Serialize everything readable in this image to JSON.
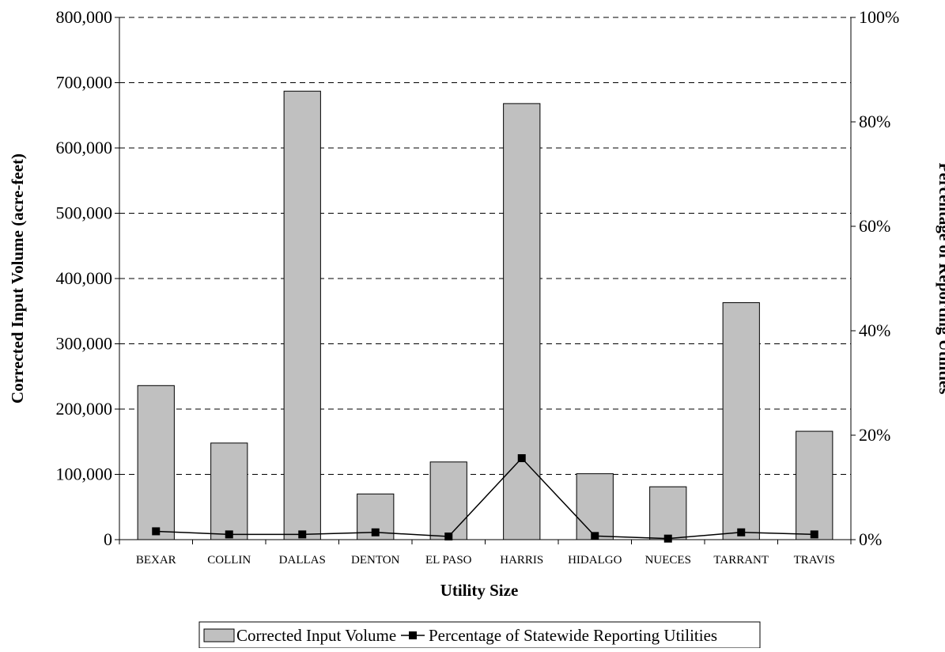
{
  "chart_data": {
    "type": "bar",
    "xlabel": "Utility Size",
    "ylabel": "Corrected Input Volume (acre-feet)",
    "y2label": "Percentage of Reporting Utilities",
    "categories": [
      "BEXAR",
      "COLLIN",
      "DALLAS",
      "DENTON",
      "EL PASO",
      "HARRIS",
      "HIDALGO",
      "NUECES",
      "TARRANT",
      "TRAVIS"
    ],
    "ylim": [
      0,
      800000
    ],
    "y_ticks": [
      0,
      100000,
      200000,
      300000,
      400000,
      500000,
      600000,
      700000,
      800000
    ],
    "y_tick_labels": [
      "0",
      "100,000",
      "200,000",
      "300,000",
      "400,000",
      "500,000",
      "600,000",
      "700,000",
      "800,000"
    ],
    "y2lim": [
      0,
      100
    ],
    "y2_ticks": [
      0,
      20,
      40,
      60,
      80,
      100
    ],
    "y2_tick_labels": [
      "0%",
      "20%",
      "40%",
      "60%",
      "80%",
      "100%"
    ],
    "grid": true,
    "legend_position": "bottom",
    "series": [
      {
        "name": "Corrected Input Volume",
        "type": "bar",
        "axis": "left",
        "color": "#c0c0c0",
        "values": [
          236000,
          148000,
          687000,
          70000,
          119000,
          668000,
          101000,
          81000,
          363000,
          166000
        ]
      },
      {
        "name": "Percentage of Statewide Reporting Utilities",
        "type": "line",
        "axis": "right",
        "color": "#000000",
        "values": [
          1.6,
          1.0,
          1.0,
          1.4,
          0.6,
          15.6,
          0.7,
          0.2,
          1.4,
          1.0
        ]
      }
    ]
  }
}
